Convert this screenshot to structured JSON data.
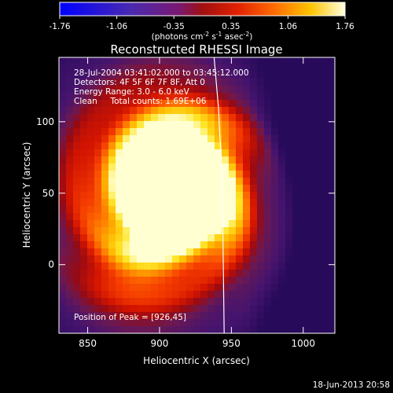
{
  "chart_data": {
    "type": "heatmap",
    "title": "Reconstructed RHESSI Image",
    "xlabel": "Heliocentric X (arcsec)",
    "ylabel": "Heliocentric Y (arcsec)",
    "xlim": [
      830,
      1022
    ],
    "ylim": [
      -48,
      145
    ],
    "x_ticks": [
      850,
      900,
      950,
      1000
    ],
    "y_ticks": [
      0,
      50,
      100
    ],
    "colorbar": {
      "range": [
        -1.76,
        1.76
      ],
      "ticks": [
        "-1.76",
        "-1.06",
        "-0.35",
        "0.35",
        "1.06",
        "1.76"
      ],
      "units_prefix": "(photons cm",
      "units_exp1": "-2",
      "units_mid": " s",
      "units_exp2": "-1",
      "units_mid2": " asec",
      "units_exp3": "-2",
      "units_suffix": ")"
    },
    "annotations": [
      "28-Jul-2004 03:41:02.000 to 03:45:12.000",
      "Detectors: 4F 5F 6F 7F 8F, Att 0",
      "Energy Range: 3.0 - 6.0 keV",
      "Clean     Total counts: 1.69E+06"
    ],
    "peak_label": "Position of Peak = [926,45]",
    "peak": [
      926,
      45
    ],
    "limb_curve": [
      [
        938,
        145
      ],
      [
        941,
        110
      ],
      [
        943,
        70
      ],
      [
        944,
        30
      ],
      [
        944.5,
        -10
      ],
      [
        945,
        -48
      ]
    ],
    "blobs": [
      {
        "x": 922,
        "y": 45,
        "sx": 22,
        "sy": 22,
        "a": 1.0
      },
      {
        "x": 900,
        "y": 60,
        "sx": 35,
        "sy": 40,
        "a": 0.75
      },
      {
        "x": 893,
        "y": 40,
        "sx": 42,
        "sy": 55,
        "a": 0.55
      },
      {
        "x": 930,
        "y": 90,
        "sx": 25,
        "sy": 20,
        "a": 0.35
      },
      {
        "x": 965,
        "y": 20,
        "sx": 22,
        "sy": 28,
        "a": 0.18
      },
      {
        "x": 880,
        "y": -10,
        "sx": 25,
        "sy": 18,
        "a": 0.25
      }
    ],
    "background_level": -0.55
  },
  "footer_timestamp": "18-Jun-2013 20:58"
}
